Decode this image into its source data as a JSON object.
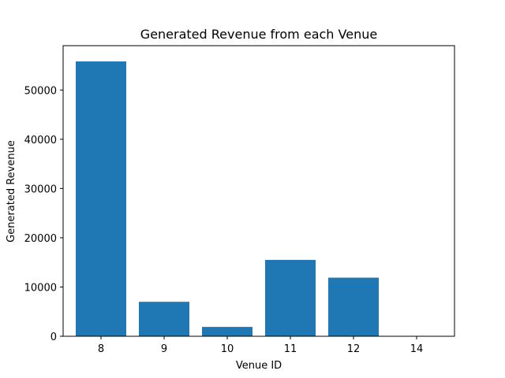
{
  "chart_data": {
    "type": "bar",
    "title": "Generated Revenue from each Venue",
    "xlabel": "Venue ID",
    "ylabel": "Generated Revenue",
    "categories": [
      "8",
      "9",
      "10",
      "11",
      "12",
      "14"
    ],
    "values": [
      55800,
      7000,
      1900,
      15500,
      11900,
      0
    ],
    "ylim": [
      0,
      59000
    ],
    "yticks": [
      0,
      10000,
      20000,
      30000,
      40000,
      50000
    ],
    "grid": false,
    "bar_color": "#1f77b4"
  }
}
